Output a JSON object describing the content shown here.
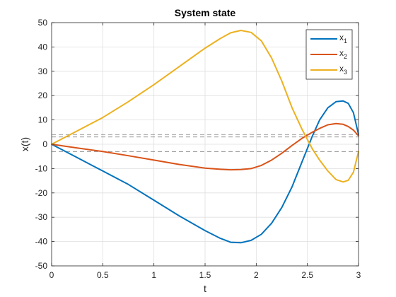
{
  "chart_data": {
    "type": "line",
    "title": "System state",
    "xlabel": "t",
    "ylabel": "x(t)",
    "xlim": [
      0,
      3
    ],
    "ylim": [
      -50,
      50
    ],
    "xticks": [
      0,
      0.5,
      1,
      1.5,
      2,
      2.5,
      3
    ],
    "xtick_labels": [
      "0",
      "0.5",
      "1",
      "1.5",
      "2",
      "2.5",
      "3"
    ],
    "yticks": [
      -50,
      -40,
      -30,
      -20,
      -10,
      0,
      10,
      20,
      30,
      40,
      50
    ],
    "ytick_labels": [
      "-50",
      "-40",
      "-30",
      "-20",
      "-10",
      "0",
      "10",
      "20",
      "30",
      "40",
      "50"
    ],
    "grid": true,
    "legend_position": "top-right",
    "x": [
      0,
      0.25,
      0.5,
      0.75,
      1,
      1.25,
      1.5,
      1.65,
      1.75,
      1.85,
      1.95,
      2.05,
      2.15,
      2.25,
      2.35,
      2.45,
      2.55,
      2.62,
      2.7,
      2.78,
      2.85,
      2.9,
      2.95,
      3.0
    ],
    "series": [
      {
        "base": "x",
        "sub": "1",
        "color": "#0072BD",
        "values": [
          0,
          -5.5,
          -11,
          -16.5,
          -23,
          -29.5,
          -35.5,
          -38.7,
          -40.3,
          -40.5,
          -39.5,
          -37,
          -32.5,
          -26,
          -17.5,
          -7,
          3.5,
          10,
          15,
          17.5,
          17.8,
          16.8,
          13,
          4
        ]
      },
      {
        "base": "x",
        "sub": "2",
        "color": "#D95319",
        "values": [
          0,
          -1.5,
          -3,
          -4.7,
          -6.5,
          -8.3,
          -9.8,
          -10.3,
          -10.5,
          -10.4,
          -10,
          -8.7,
          -6.5,
          -3.7,
          -0.5,
          2.5,
          5,
          6.5,
          8,
          8.5,
          8.2,
          7.3,
          5.8,
          3.5
        ]
      },
      {
        "base": "x",
        "sub": "3",
        "color": "#EDB120",
        "values": [
          0,
          5.5,
          11,
          17.5,
          24.5,
          32,
          39.5,
          43.5,
          45.8,
          46.8,
          46,
          42.5,
          35.5,
          26,
          15,
          6,
          -2,
          -6.5,
          -11,
          -14.5,
          -15.5,
          -14.8,
          -11.5,
          -3
        ]
      }
    ],
    "reference_lines": [
      {
        "y": 4,
        "color": "#808080",
        "style": "dashed"
      },
      {
        "y": 3,
        "color": "#808080",
        "style": "dashed"
      },
      {
        "y": -3,
        "color": "#808080",
        "style": "dashed"
      }
    ]
  }
}
